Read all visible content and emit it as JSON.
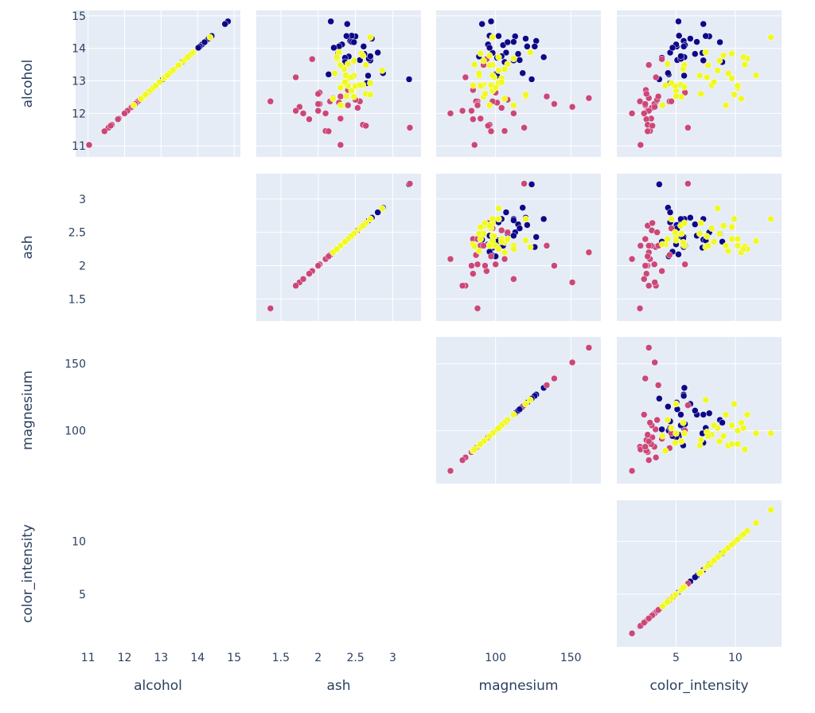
{
  "chart_data": {
    "type": "scatter",
    "subtype": "scatter-matrix (upper triangle incl. diagonal)",
    "dimensions": [
      "alcohol",
      "ash",
      "magnesium",
      "color_intensity"
    ],
    "axis_titles": [
      "alcohol",
      "ash",
      "magnesium",
      "color_intensity"
    ],
    "ranges": {
      "alcohol": [
        10.66,
        15.17
      ],
      "ash": [
        1.17,
        3.38
      ],
      "magnesium": [
        60.5,
        170
      ],
      "color_intensity": [
        0,
        13.9
      ]
    },
    "ticks": {
      "alcohol": [
        "11",
        "12",
        "13",
        "14",
        "15"
      ],
      "ash": [
        "1.5",
        "2",
        "2.5",
        "3"
      ],
      "magnesium": [
        "100",
        "150"
      ],
      "color_intensity": [
        "5",
        "10"
      ]
    },
    "grid": true,
    "legend": "none",
    "background_color": "#e5ecf6",
    "series": [
      {
        "color": "#0d0887",
        "points": [
          [
            14.23,
            2.43,
            127,
            5.64
          ],
          [
            13.2,
            2.14,
            100,
            4.38
          ],
          [
            13.16,
            2.67,
            101,
            5.68
          ],
          [
            14.37,
            2.5,
            113,
            7.8
          ],
          [
            13.24,
            2.87,
            118,
            4.32
          ],
          [
            14.2,
            2.45,
            112,
            6.75
          ],
          [
            14.39,
            2.45,
            96,
            5.25
          ],
          [
            14.06,
            2.61,
            121,
            5.05
          ],
          [
            14.83,
            2.17,
            97,
            5.2
          ],
          [
            13.86,
            2.27,
            98,
            7.22
          ],
          [
            14.1,
            2.3,
            105,
            5.75
          ],
          [
            14.12,
            2.32,
            95,
            5.0
          ],
          [
            13.75,
            2.41,
            89,
            5.6
          ],
          [
            14.75,
            2.39,
            91,
            7.3
          ],
          [
            14.38,
            2.38,
            102,
            7.5
          ],
          [
            13.63,
            2.7,
            112,
            7.3
          ],
          [
            14.3,
            2.72,
            120,
            6.2
          ],
          [
            13.83,
            2.62,
            115,
            6.6
          ],
          [
            14.19,
            2.48,
            108,
            8.7
          ],
          [
            13.64,
            2.56,
            116,
            5.1
          ],
          [
            14.06,
            2.28,
            126,
            5.65
          ],
          [
            12.93,
            2.65,
            102,
            4.5
          ],
          [
            13.71,
            2.36,
            101,
            3.8
          ],
          [
            13.05,
            3.22,
            124,
            3.58
          ],
          [
            13.87,
            2.8,
            107,
            4.5
          ],
          [
            14.02,
            2.21,
            96,
            4.7
          ],
          [
            13.73,
            2.7,
            132,
            5.7
          ],
          [
            13.58,
            2.36,
            106,
            8.9
          ],
          [
            13.68,
            2.68,
            112,
            5.4
          ],
          [
            13.76,
            2.7,
            104,
            5.4
          ]
        ]
      },
      {
        "color": "#cc4778",
        "points": [
          [
            12.37,
            1.36,
            88,
            1.95
          ],
          [
            12.33,
            2.28,
            101,
            3.27
          ],
          [
            12.64,
            2.02,
            100,
            5.75
          ],
          [
            13.67,
            1.92,
            94,
            3.8
          ],
          [
            12.37,
            2.16,
            87,
            4.45
          ],
          [
            12.17,
            2.53,
            104,
            2.95
          ],
          [
            12.37,
            2.56,
            98,
            4.6
          ],
          [
            13.11,
            1.7,
            80,
            3.3
          ],
          [
            12.29,
            2.02,
            88,
            3.17
          ],
          [
            11.03,
            2.3,
            86,
            2.0
          ],
          [
            11.46,
            2.1,
            106,
            2.8
          ],
          [
            12.08,
            2.0,
            84,
            2.6
          ],
          [
            12.2,
            1.75,
            151,
            3.2
          ],
          [
            12.47,
            2.2,
            162,
            2.7
          ],
          [
            11.56,
            3.23,
            119,
            6.0
          ],
          [
            12.0,
            2.1,
            70,
            1.28
          ],
          [
            11.84,
            2.3,
            90,
            2.9
          ],
          [
            12.72,
            2.4,
            85,
            2.45
          ],
          [
            12.08,
            1.7,
            78,
            2.7
          ],
          [
            11.82,
            1.88,
            85,
            2.5
          ],
          [
            12.42,
            2.5,
            108,
            3.4
          ],
          [
            11.65,
            2.6,
            96,
            2.6
          ],
          [
            12.6,
            2.0,
            93,
            2.5
          ],
          [
            12.52,
            2.3,
            134,
            3.5
          ],
          [
            11.62,
            2.64,
            95,
            3.0
          ],
          [
            12.25,
            2.4,
            88,
            2.4
          ],
          [
            11.45,
            2.14,
            97,
            2.6
          ],
          [
            12.29,
            2.0,
            139,
            2.4
          ],
          [
            13.49,
            2.3,
            92,
            2.7
          ],
          [
            12.0,
            1.8,
            112,
            2.3
          ]
        ]
      },
      {
        "color": "#f0f921",
        "points": [
          [
            12.86,
            2.32,
            85,
            4.1
          ],
          [
            12.88,
            2.6,
            92,
            5.4
          ],
          [
            12.81,
            2.3,
            98,
            5.7
          ],
          [
            12.7,
            2.45,
            98,
            5.0
          ],
          [
            12.51,
            2.48,
            92,
            5.45
          ],
          [
            12.6,
            2.64,
            93,
            7.1
          ],
          [
            12.25,
            2.32,
            96,
            3.85
          ],
          [
            12.53,
            2.38,
            120,
            5.0
          ],
          [
            13.49,
            2.64,
            98,
            5.7
          ],
          [
            12.84,
            2.5,
            91,
            4.92
          ],
          [
            12.93,
            2.7,
            102,
            4.6
          ],
          [
            13.36,
            2.35,
            106,
            5.6
          ],
          [
            13.52,
            2.4,
            108,
            4.28
          ],
          [
            13.62,
            2.48,
            92,
            8.66
          ],
          [
            12.25,
            2.3,
            112,
            9.2
          ],
          [
            13.16,
            2.48,
            89,
            7.0
          ],
          [
            13.88,
            2.28,
            123,
            7.5
          ],
          [
            12.87,
            2.56,
            97,
            8.0
          ],
          [
            13.32,
            2.86,
            102,
            8.5
          ],
          [
            13.08,
            2.4,
            104,
            9.7
          ],
          [
            13.5,
            2.29,
            86,
            10.8
          ],
          [
            12.79,
            2.3,
            100,
            10.2
          ],
          [
            13.11,
            2.44,
            99,
            7.6
          ],
          [
            13.23,
            2.22,
            89,
            9.4
          ],
          [
            12.58,
            2.7,
            120,
            9.9
          ],
          [
            13.17,
            2.37,
            98,
            11.75
          ],
          [
            13.84,
            2.58,
            90,
            9.7
          ],
          [
            12.45,
            2.2,
            106,
            10.5
          ],
          [
            14.34,
            2.7,
            98,
            13.0
          ],
          [
            13.48,
            2.3,
            96,
            7.7
          ],
          [
            13.69,
            2.25,
            112,
            11.0
          ],
          [
            12.85,
            2.4,
            90,
            10.2
          ],
          [
            12.96,
            2.36,
            104,
            8.2
          ],
          [
            13.78,
            2.6,
            96,
            9.0
          ],
          [
            13.73,
            2.25,
            102,
            10.68
          ]
        ]
      }
    ]
  }
}
